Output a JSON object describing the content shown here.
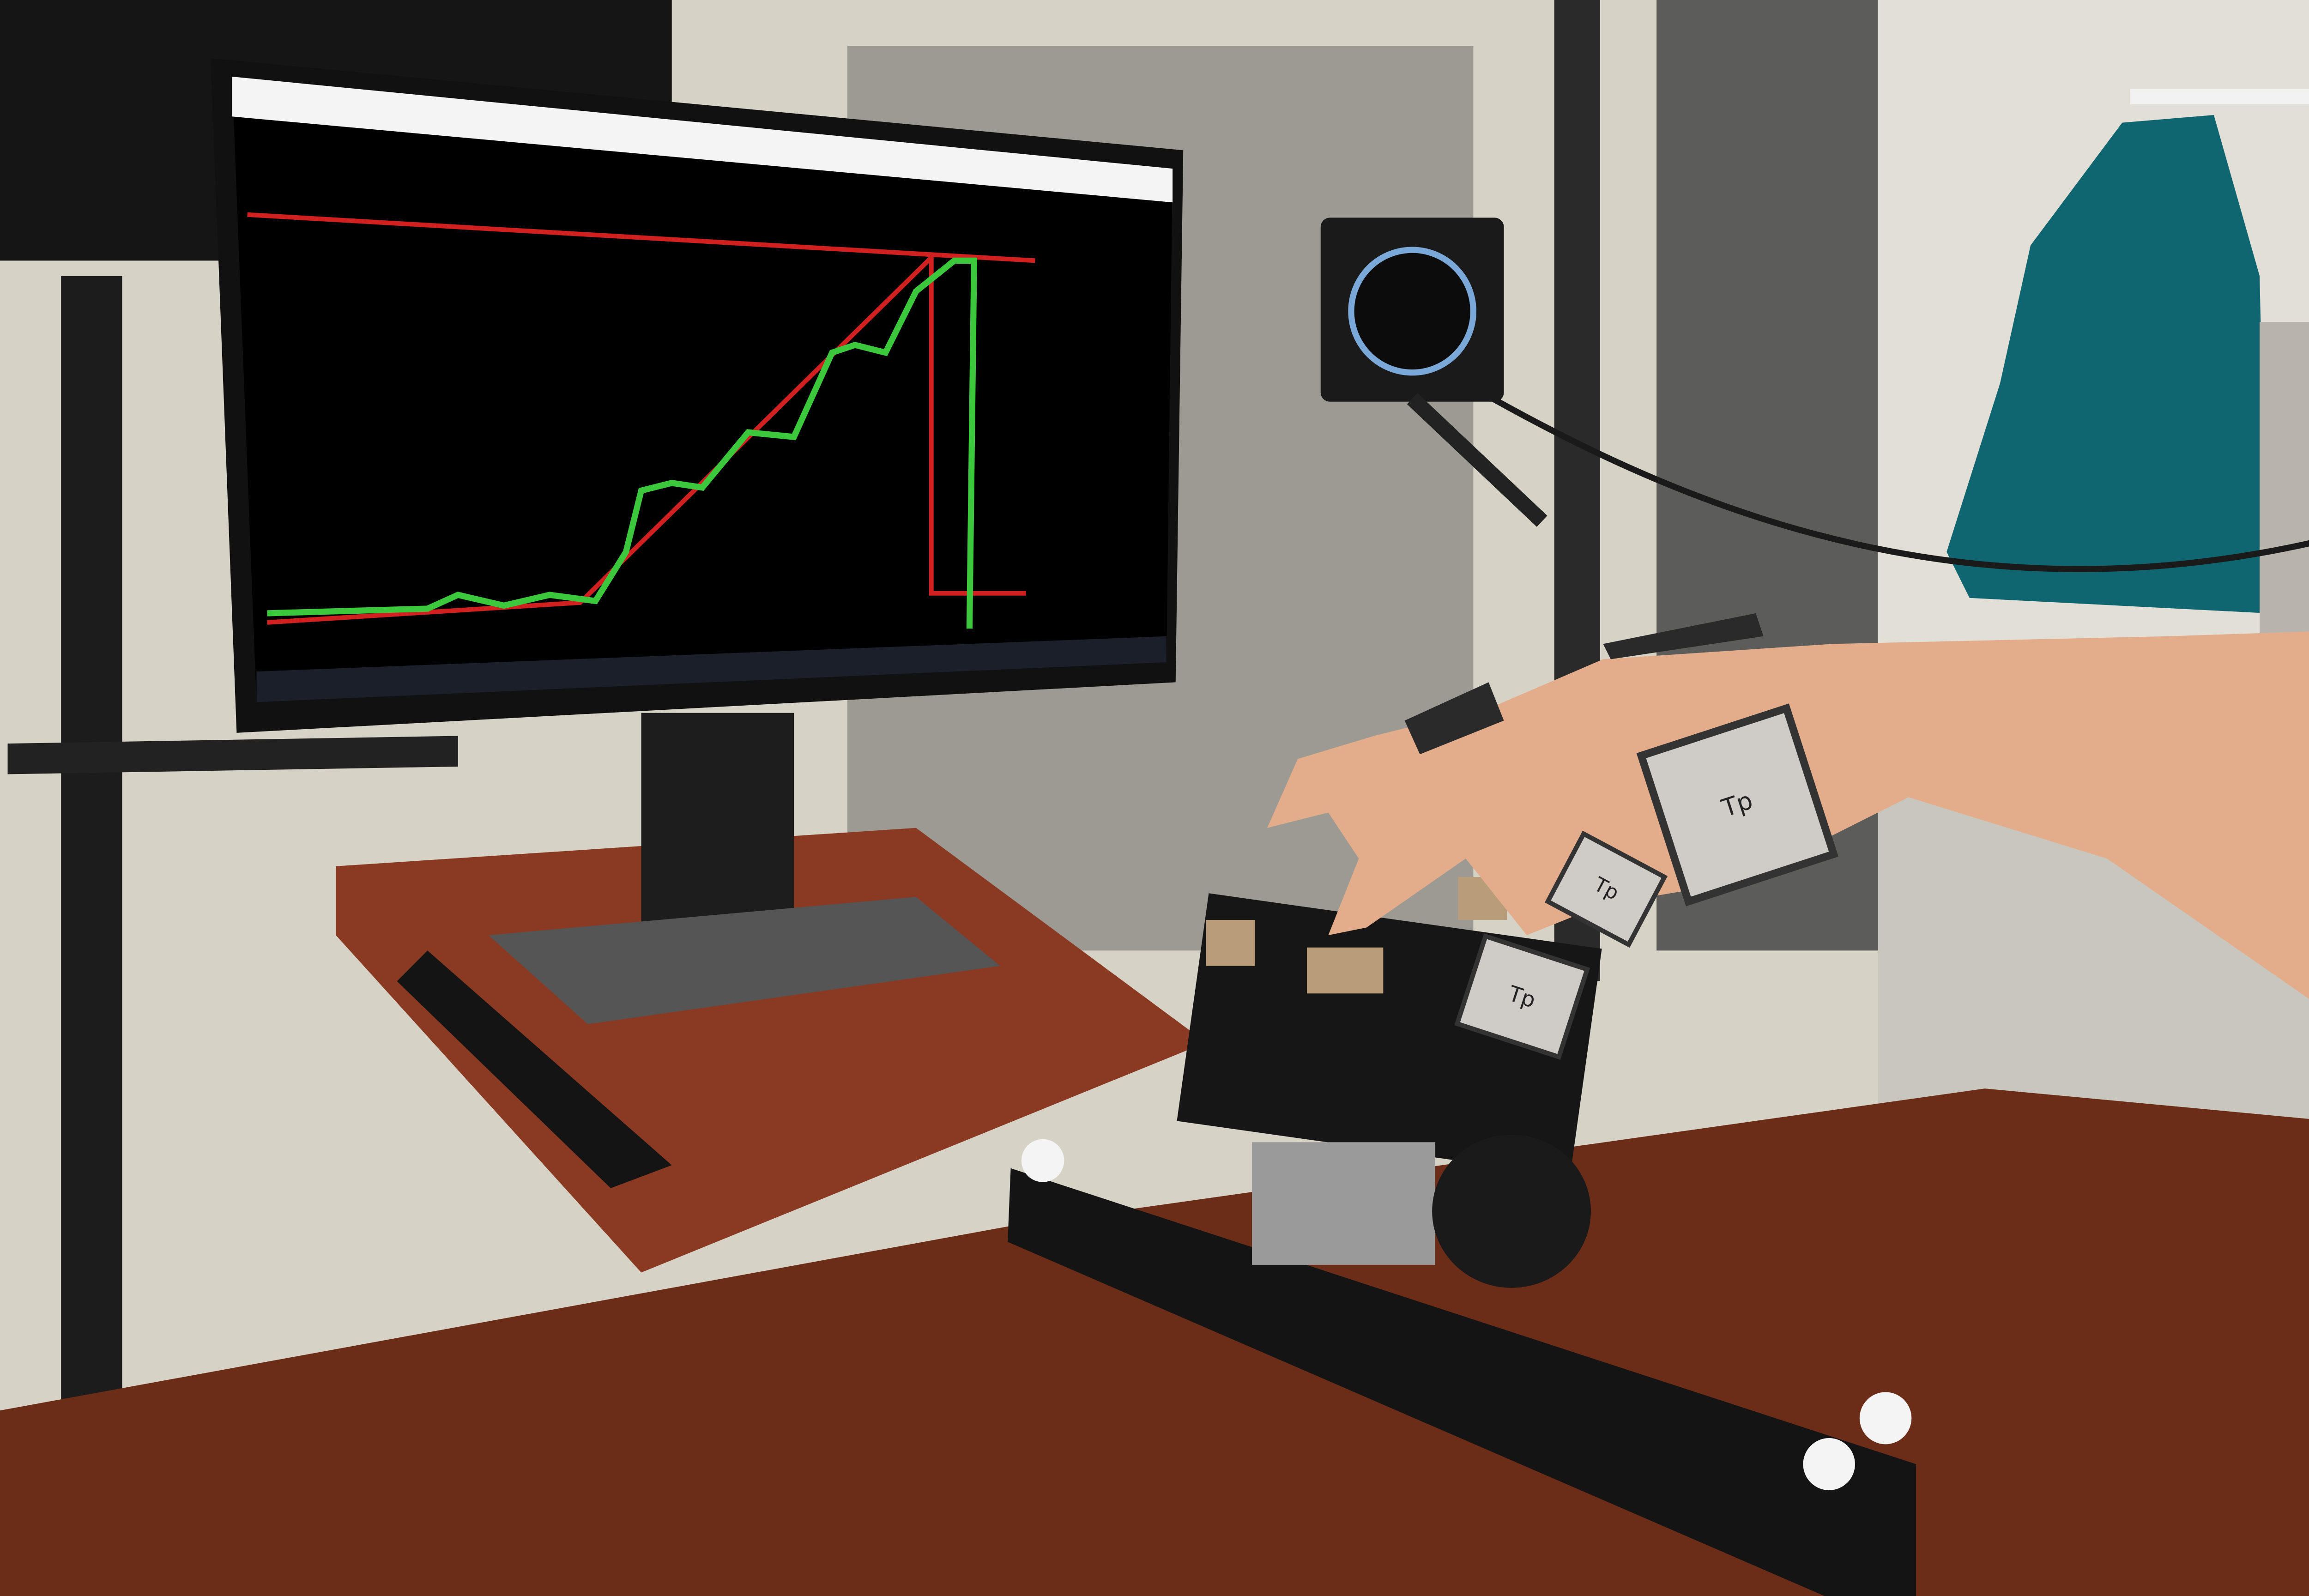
{
  "markers": [
    {
      "label": "Tp"
    },
    {
      "label": "Tp"
    },
    {
      "label": "Tp"
    }
  ]
}
